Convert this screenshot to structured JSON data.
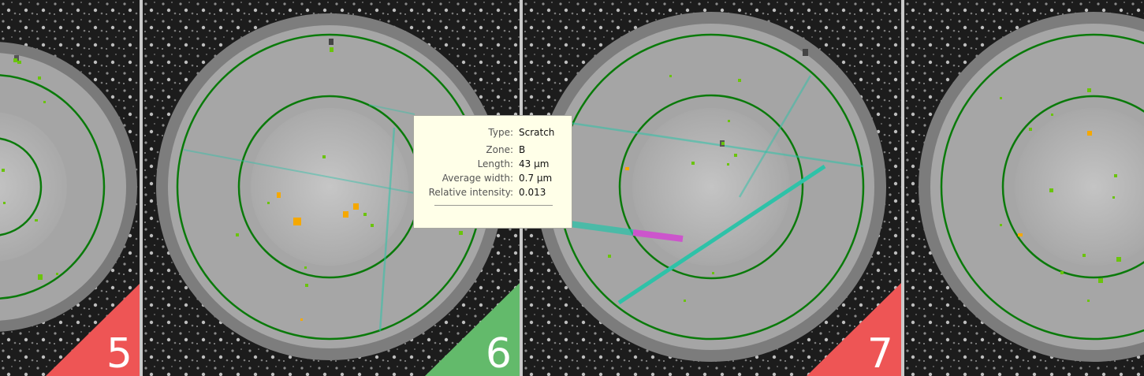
{
  "panels": [
    {
      "id": "5",
      "label": "5",
      "status": "fail",
      "color": "#ee5555"
    },
    {
      "id": "6",
      "label": "6",
      "status": "pass",
      "color": "#63ba6b"
    },
    {
      "id": "7",
      "label": "7",
      "status": "fail",
      "color": "#ee5555"
    },
    {
      "id": "8",
      "label": "",
      "status": "none",
      "color": ""
    }
  ],
  "tooltip": {
    "rows": [
      {
        "label": "Type:",
        "value": "Scratch"
      },
      {
        "label": "Zone:",
        "value": "B"
      },
      {
        "label": "Length:",
        "value": "43 µm"
      },
      {
        "label": "Average width:",
        "value": "0.7 µm"
      },
      {
        "label": "Relative intensity:",
        "value": "0.013"
      }
    ]
  },
  "colors": {
    "zone_ring": "#0a7a0a",
    "defect_small": "#6ac40c",
    "defect_large": "#f5a800",
    "scratch": "#2ec2a8",
    "scratch_highlight": "#cc55cc",
    "fail": "#ee5555",
    "pass": "#63ba6b"
  }
}
